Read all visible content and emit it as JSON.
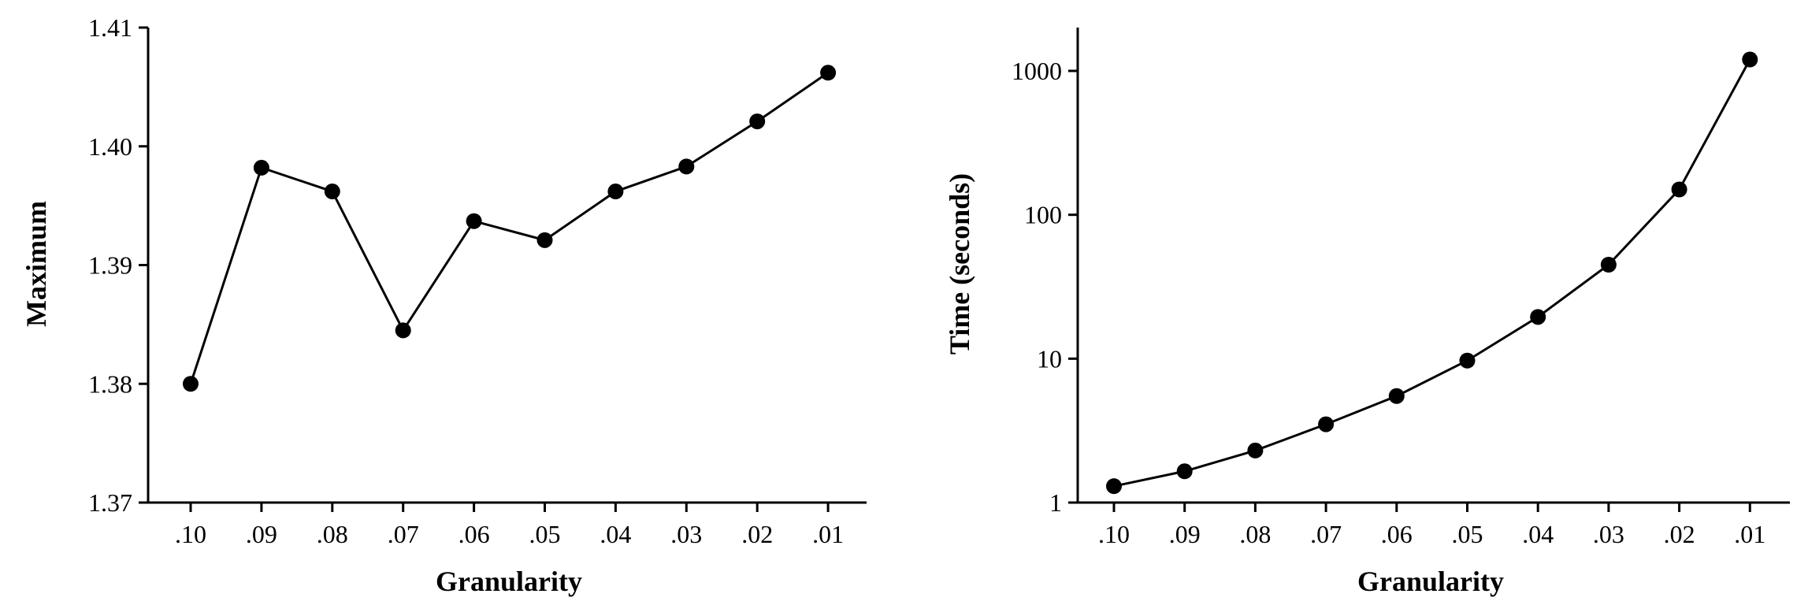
{
  "chart_data": [
    {
      "type": "line",
      "xlabel": "Granularity",
      "ylabel": "Maximum",
      "categories": [
        ".10",
        ".09",
        ".08",
        ".07",
        ".06",
        ".05",
        ".04",
        ".03",
        ".02",
        ".01"
      ],
      "values": [
        1.38,
        1.3982,
        1.3962,
        1.3845,
        1.3937,
        1.3921,
        1.3962,
        1.3983,
        1.4021,
        1.4062
      ],
      "yscale": "linear",
      "ylim": [
        1.37,
        1.41
      ],
      "yticks": [
        1.37,
        1.38,
        1.39,
        1.4,
        1.41
      ],
      "ytick_labels": [
        "1.37",
        "1.38",
        "1.39",
        "1.40",
        "1.41"
      ],
      "grid": false,
      "marker": "filled-circle",
      "color": "#000000"
    },
    {
      "type": "line",
      "xlabel": "Granularity",
      "ylabel": "Time (seconds)",
      "categories": [
        ".10",
        ".09",
        ".08",
        ".07",
        ".06",
        ".05",
        ".04",
        ".03",
        ".02",
        ".01"
      ],
      "values": [
        1.3,
        1.65,
        2.3,
        3.5,
        5.5,
        9.7,
        19.5,
        45,
        150,
        1200
      ],
      "yscale": "log",
      "ylim": [
        1,
        2000
      ],
      "yticks": [
        1,
        10,
        100,
        1000
      ],
      "ytick_labels": [
        "1",
        "10",
        "100",
        "1000"
      ],
      "grid": false,
      "marker": "filled-circle",
      "color": "#000000"
    }
  ]
}
